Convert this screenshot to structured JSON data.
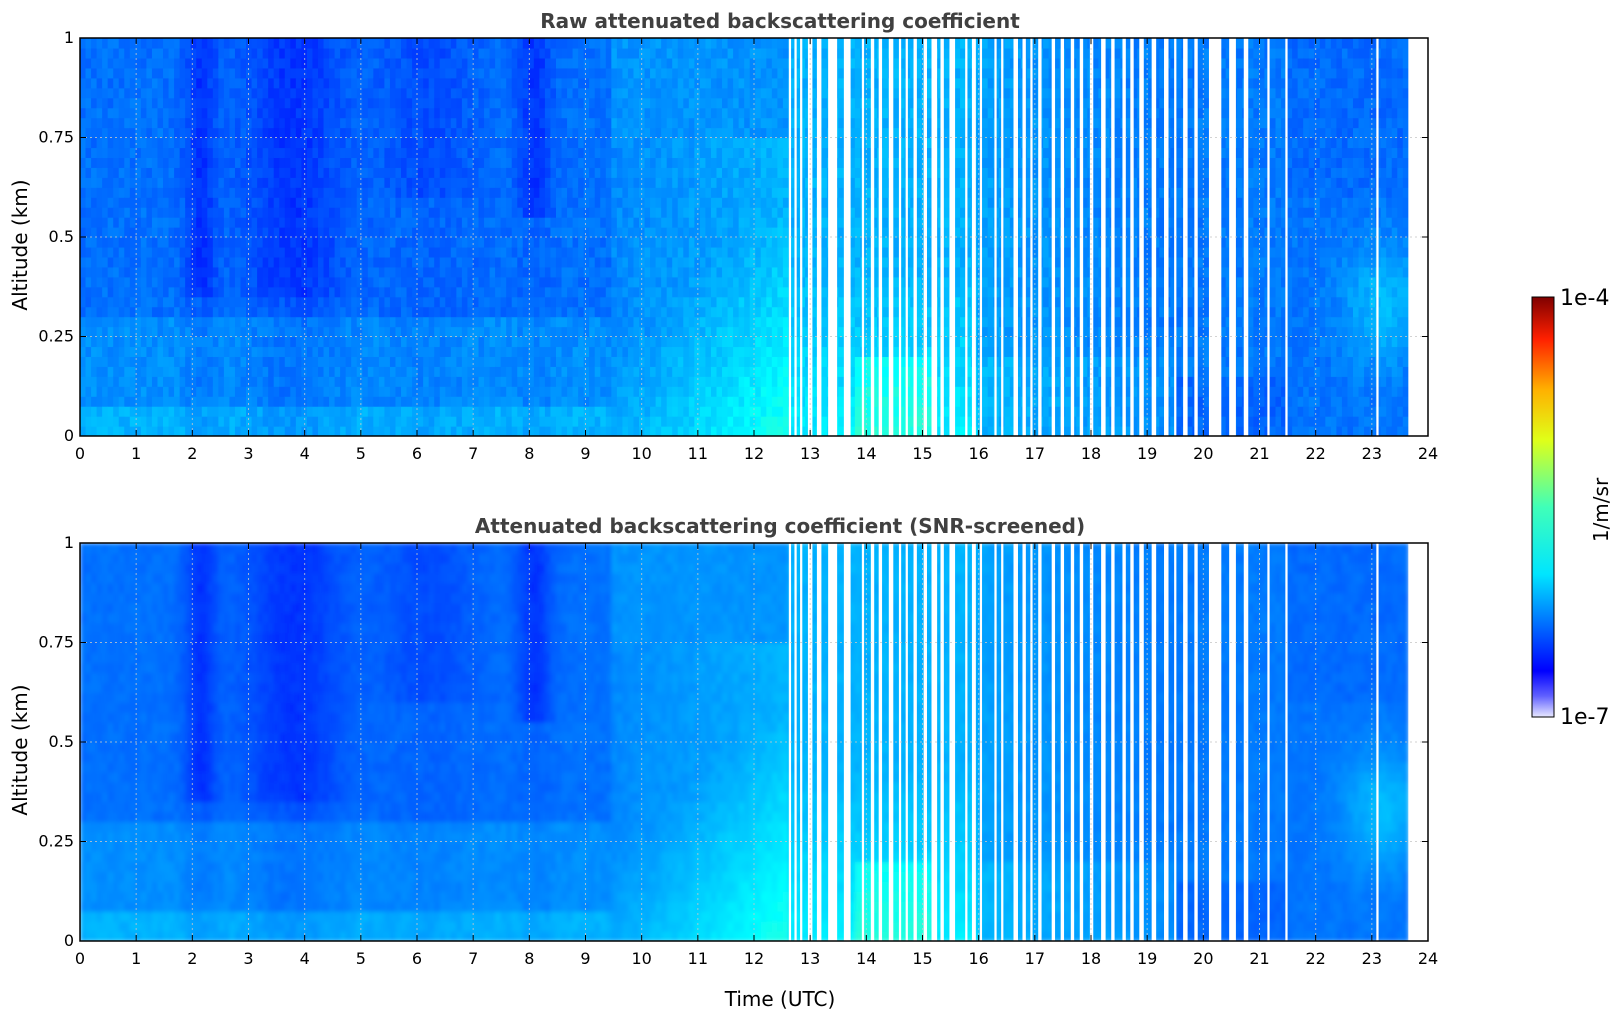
{
  "chart_data": [
    {
      "type": "heatmap",
      "title": "Raw attenuated backscattering coefficient",
      "xlabel": "",
      "ylabel": "Altitude (km)",
      "xlim": [
        0,
        24
      ],
      "ylim": [
        0,
        1
      ],
      "xticks": [
        "0",
        "1",
        "2",
        "3",
        "4",
        "5",
        "6",
        "7",
        "8",
        "9",
        "10",
        "11",
        "12",
        "13",
        "14",
        "15",
        "16",
        "17",
        "18",
        "19",
        "20",
        "21",
        "22",
        "23",
        "24"
      ],
      "yticks": [
        "0",
        "0.25",
        "0.5",
        "0.75",
        "1"
      ],
      "grid": true,
      "data_end_hour": 23.65
    },
    {
      "type": "heatmap",
      "title": "Attenuated backscattering coefficient (SNR-screened)",
      "xlabel": "Time (UTC)",
      "ylabel": "Altitude (km)",
      "xlim": [
        0,
        24
      ],
      "ylim": [
        0,
        1
      ],
      "xticks": [
        "0",
        "1",
        "2",
        "3",
        "4",
        "5",
        "6",
        "7",
        "8",
        "9",
        "10",
        "11",
        "12",
        "13",
        "14",
        "15",
        "16",
        "17",
        "18",
        "19",
        "20",
        "21",
        "22",
        "23",
        "24"
      ],
      "yticks": [
        "0",
        "0.25",
        "0.5",
        "0.75",
        "1"
      ],
      "grid": true,
      "data_end_hour": 23.65
    }
  ],
  "colorbar": {
    "label": "1/m/sr",
    "min_label": "1e-7",
    "max_label": "1e-4",
    "colormap": "jet"
  },
  "gaps_hours": [
    [
      12.62,
      12.66
    ],
    [
      12.72,
      12.76
    ],
    [
      12.82,
      12.86
    ],
    [
      12.96,
      13.04
    ],
    [
      13.12,
      13.2
    ],
    [
      13.32,
      13.48
    ],
    [
      13.6,
      13.72
    ],
    [
      13.92,
      13.96
    ],
    [
      14.08,
      14.14
    ],
    [
      14.22,
      14.28
    ],
    [
      14.4,
      14.48
    ],
    [
      14.58,
      14.62
    ],
    [
      14.7,
      14.74
    ],
    [
      14.84,
      14.9
    ],
    [
      15.02,
      15.08
    ],
    [
      15.16,
      15.26
    ],
    [
      15.32,
      15.38
    ],
    [
      15.48,
      15.58
    ],
    [
      15.76,
      15.8
    ],
    [
      15.88,
      15.95
    ],
    [
      16.02,
      16.06
    ],
    [
      16.28,
      16.32
    ],
    [
      16.4,
      16.44
    ],
    [
      16.62,
      16.7
    ],
    [
      16.78,
      16.84
    ],
    [
      16.92,
      16.96
    ],
    [
      17.06,
      17.12
    ],
    [
      17.3,
      17.36
    ],
    [
      17.46,
      17.52
    ],
    [
      17.64,
      17.7
    ],
    [
      17.8,
      17.86
    ],
    [
      17.98,
      18.04
    ],
    [
      18.18,
      18.26
    ],
    [
      18.36,
      18.42
    ],
    [
      18.56,
      18.62
    ],
    [
      18.7,
      18.76
    ],
    [
      18.86,
      18.94
    ],
    [
      19.08,
      19.16
    ],
    [
      19.3,
      19.38
    ],
    [
      19.48,
      19.52
    ],
    [
      19.64,
      19.72
    ],
    [
      19.84,
      19.9
    ],
    [
      20.1,
      20.32
    ],
    [
      20.46,
      20.58
    ],
    [
      20.72,
      20.8
    ],
    [
      21.14,
      21.18
    ],
    [
      21.46,
      21.5
    ],
    [
      23.08,
      23.12
    ]
  ]
}
